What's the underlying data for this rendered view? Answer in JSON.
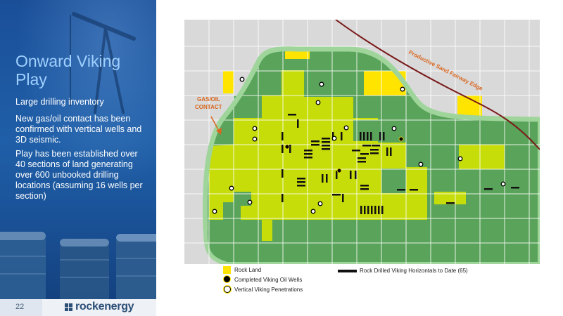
{
  "slide": {
    "title": "Onward Viking Play",
    "bullets": [
      "Large drilling inventory",
      "New gas/oil contact has been confirmed with vertical wells and 3D seismic.",
      "Play has been established over 40 sections of land generating over 600 unbooked drilling locations (assuming 16 wells per section)"
    ],
    "page_number": "22",
    "logo_text": "rockenergy"
  },
  "map": {
    "gas_oil_label_line1": "GAS/OIL",
    "gas_oil_label_line2": "CONTACT",
    "fairway_label": "Productive Sand Fairway Edge"
  },
  "legend": {
    "rock_land": "Rock Land",
    "completed_wells": "Completed Viking Oil Wells",
    "vertical_penetrations": "Vertical Viking Penetrations",
    "horizontals": "Rock Drilled Viking Horizontals to Date (65)"
  },
  "colors": {
    "rock_land": "#ffe400",
    "play_light_green": "#c7dd0a",
    "dark_green": "#5aa35a",
    "outline_green": "#9fd59b",
    "fairway_line": "#7a1a1a",
    "arrow_orange": "#d9661f",
    "title_blue": "#9fd0ff"
  }
}
